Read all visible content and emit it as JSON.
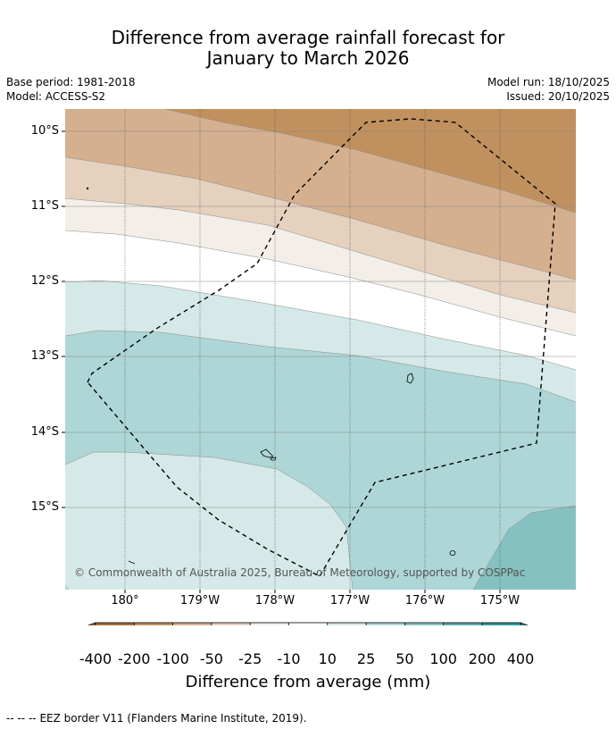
{
  "title": {
    "line1": "Difference from average rainfall forecast for",
    "line2": "January to March 2026"
  },
  "meta": {
    "base_period": "Base period: 1981-2018",
    "model": "Model: ACCESS-S2",
    "model_run": "Model run: 18/10/2025",
    "issued": "Issued: 20/10/2025"
  },
  "map": {
    "lat_labels": [
      "10°S",
      "11°S",
      "12°S",
      "13°S",
      "14°S",
      "15°S"
    ],
    "lon_labels": [
      "180°",
      "179°W",
      "178°W",
      "177°W",
      "176°W",
      "175°W"
    ],
    "copyright": "© Commonwealth of Australia 2025, Bureau of Meteorology, supported by COSPPac"
  },
  "colorbar": {
    "title": "Difference from average (mm)",
    "ticks": [
      "-400",
      "-200",
      "-100",
      "-50",
      "-25",
      "-10",
      "10",
      "25",
      "50",
      "100",
      "200",
      "400"
    ],
    "colors": [
      "#a86f3a",
      "#c0915f",
      "#d4b08f",
      "#e5d1be",
      "#f3eee8",
      "#ffffff",
      "#d5e9e8",
      "#aed6d6",
      "#86c1c1",
      "#5ba9aa",
      "#2f9a98"
    ],
    "under_color": "#9a6532",
    "over_color": "#2e8685"
  },
  "legend": {
    "eez_marker": "--  --  --",
    "eez_text": "EEZ border V11 (Flanders Marine Institute, 2019)."
  }
}
